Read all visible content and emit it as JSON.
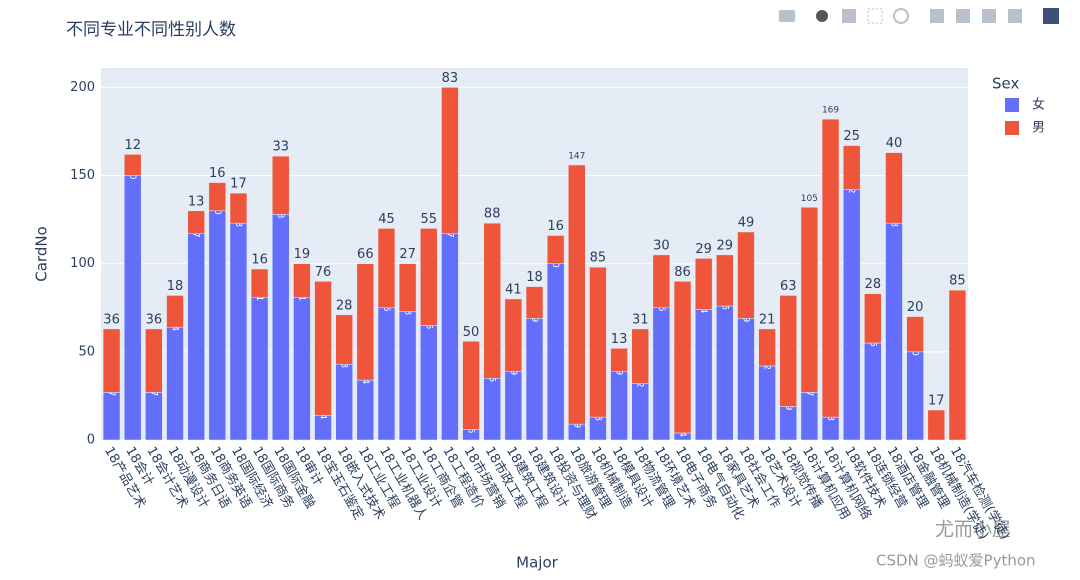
{
  "chart_data": {
    "type": "stacked-bar",
    "title": "不同专业不同性别人数",
    "x_label": "Major",
    "y_label": "CardNo",
    "legend_title": "Sex",
    "categories": [
      "18产品艺术",
      "18会计",
      "18会计艺术",
      "18动漫设计",
      "18商务日语",
      "18商务英语",
      "18国际经济",
      "18国际商务",
      "18国际金融",
      "18审计",
      "18宝玉石鉴定",
      "18嵌入式技术",
      "18工业工程",
      "18工业机器人",
      "18工业设计",
      "18工商企管",
      "18工程造价",
      "18市场营销",
      "18市政工程",
      "18建筑工程",
      "18建筑设计",
      "18投资与理财",
      "18旅游管理",
      "18机械制造",
      "18模具设计",
      "18物流管理",
      "18环境艺术",
      "18电子商务",
      "18电气自动化",
      "18家具艺术",
      "18社会工作",
      "18艺术设计",
      "18视觉传播",
      "18计算机应用",
      "18计算机网络",
      "18软件技术",
      "18连锁经营",
      "18酒店管理",
      "18金融管理",
      "18机械制造(学徒)",
      "18汽车检测(学徒)"
    ],
    "series": [
      {
        "name": "女",
        "color": "#636efa",
        "values": [
          27,
          150,
          27,
          64,
          117,
          130,
          123,
          81,
          128,
          81,
          14,
          43,
          34,
          75,
          73,
          65,
          117,
          6,
          35,
          39,
          69,
          100,
          9,
          13,
          39,
          32,
          75,
          4,
          74,
          76,
          69,
          42,
          19,
          27,
          13,
          142,
          55,
          123,
          50,
          null,
          null
        ]
      },
      {
        "name": "男",
        "color": "#ef553b",
        "values": [
          36,
          12,
          36,
          18,
          13,
          16,
          17,
          16,
          33,
          19,
          76,
          28,
          66,
          45,
          27,
          55,
          83,
          50,
          88,
          41,
          18,
          16,
          147,
          85,
          13,
          31,
          30,
          86,
          29,
          29,
          49,
          21,
          63,
          105,
          169,
          25,
          28,
          40,
          20,
          17,
          85
        ]
      }
    ],
    "ylim": [
      0,
      211
    ],
    "yticks": [
      0,
      50,
      100,
      150,
      200
    ],
    "grid": true,
    "legend_position": "top-right",
    "watermark": [
      "尤而小屋",
      "CSDN @蚂蚁爱Python"
    ]
  }
}
